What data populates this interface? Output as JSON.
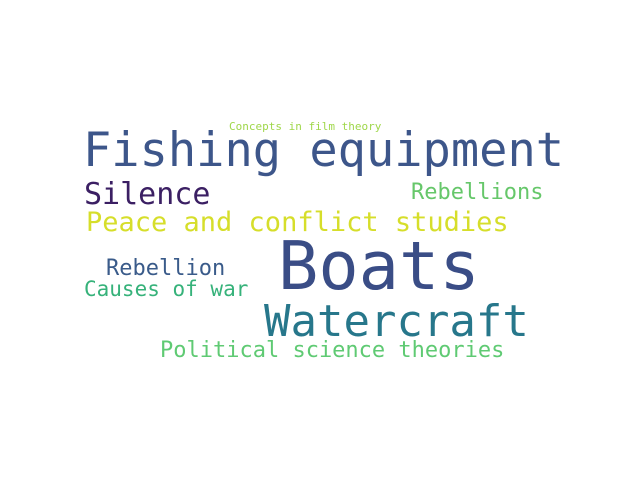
{
  "word_cloud": {
    "words": [
      {
        "key": "concepts",
        "text": "Concepts in film theory",
        "color": "#9fd74a"
      },
      {
        "key": "fishing",
        "text": "Fishing equipment",
        "color": "#3d568a"
      },
      {
        "key": "silence",
        "text": "Silence",
        "color": "#3b1f63"
      },
      {
        "key": "rebellions",
        "text": "Rebellions",
        "color": "#66c76a"
      },
      {
        "key": "peace",
        "text": "Peace and conflict studies",
        "color": "#d6de2a"
      },
      {
        "key": "boats",
        "text": "Boats",
        "color": "#3a4d86"
      },
      {
        "key": "rebellion",
        "text": "Rebellion",
        "color": "#3a5b8a"
      },
      {
        "key": "causes",
        "text": "Causes of war",
        "color": "#36b27a"
      },
      {
        "key": "watercraft",
        "text": "Watercraft",
        "color": "#27778b"
      },
      {
        "key": "political",
        "text": "Political science theories",
        "color": "#5fca73"
      }
    ]
  }
}
